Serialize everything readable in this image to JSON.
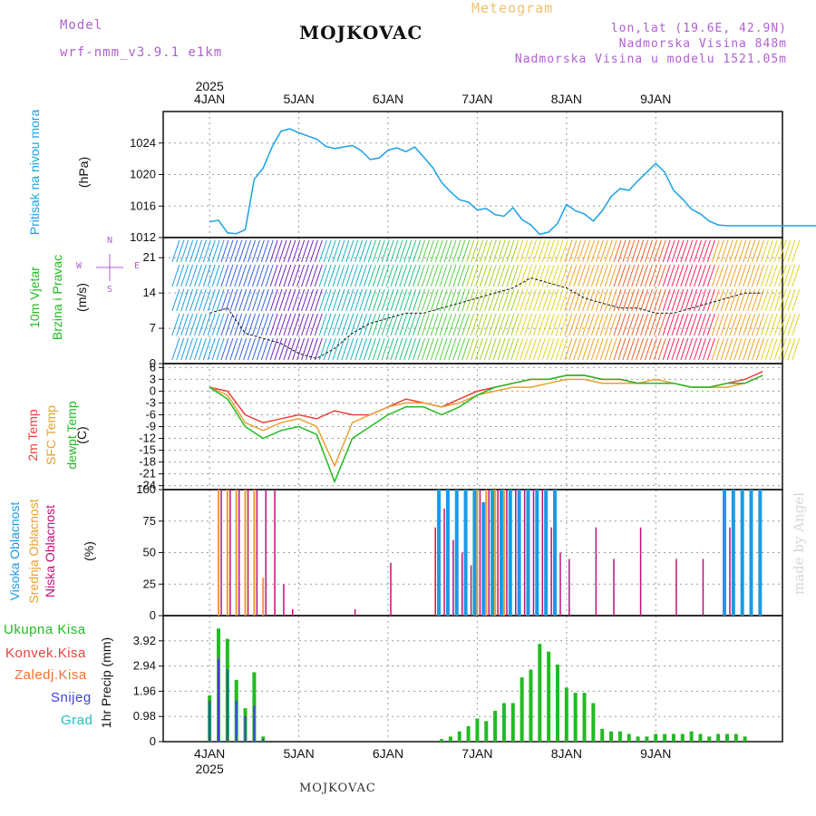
{
  "header": {
    "model_label": "Model",
    "model_name": "wrf-nmm_v3.9.1 e1km",
    "meteogram_label": "Meteogram",
    "station": "MOJKOVAC",
    "lonlat": "lon,lat (19.6E, 42.9N)",
    "elevation": "Nadmorska Visina 848m",
    "model_elevation": "Nadmorska Visina u modelu 1521.05m"
  },
  "footer": {
    "station": "MOJKOVAC"
  },
  "watermark": "made by Angel",
  "colors": {
    "pressure": "#1aa3e6",
    "temp2m": "#e84040",
    "sfc_temp": "#e8a030",
    "dewpoint": "#22bb22",
    "cloud_high": "#1a9be6",
    "cloud_mid": "#e8a030",
    "cloud_low": "#c0107a",
    "precip_total": "#22bb22",
    "precip_conv": "#e84040",
    "precip_frz": "#f07030",
    "snow": "#4040dd",
    "hail": "#20c0c0",
    "header_purple": "#b060d0",
    "header_orange": "#f0c070"
  },
  "axes": {
    "year": "2025",
    "days": [
      "4JAN",
      "5JAN",
      "6JAN",
      "7JAN",
      "8JAN",
      "9JAN"
    ]
  },
  "panels": {
    "pressure": {
      "label": "Pritisak na nivou mora",
      "unit": "(hPa)"
    },
    "wind": {
      "label1": "10m Vjetar",
      "label2": "Brzina i Pravac",
      "unit": "(m/s)",
      "compass_n": "N",
      "compass_s": "S",
      "compass_w": "W",
      "compass_e": "E"
    },
    "temp": {
      "label_2m": "2m Temp",
      "label_sfc": "SFC Temp",
      "label_dew": "dewpt Temp",
      "unit": "(C)"
    },
    "cloud": {
      "label_high": "Visoka Oblacnost",
      "label_mid": "Srednja Oblacnost",
      "label_low": "Niska Oblacnost",
      "unit": "(%)"
    },
    "precip": {
      "axis_label": "1hr Precip (mm)",
      "legend": [
        "Ukupna Kisa",
        "Konvek.Kisa",
        "Zaledj.Kisa",
        "Snijeg",
        "Grad"
      ]
    }
  },
  "chart_data": [
    {
      "type": "line",
      "name": "pressure",
      "ylim": [
        1012,
        1028
      ],
      "yticks": [
        1012,
        1016,
        1020,
        1024
      ],
      "x": [
        0,
        0.1,
        0.2,
        0.3,
        0.4,
        0.5,
        0.6,
        0.7,
        0.8,
        0.9,
        1.0,
        1.1,
        1.2,
        1.3,
        1.4,
        1.5,
        1.6,
        1.7,
        1.8,
        1.9,
        2.0,
        2.1,
        2.2,
        2.3,
        2.4,
        2.5,
        2.6,
        2.7,
        2.8,
        2.9,
        3.0,
        3.1,
        3.2,
        3.3,
        3.4,
        3.5,
        3.6,
        3.7,
        3.8,
        3.9,
        4.0,
        4.1,
        4.2,
        4.3,
        4.4,
        4.5,
        4.6,
        4.7,
        4.8,
        4.9,
        5.0,
        5.1,
        5.2,
        5.3,
        5.4,
        5.5,
        5.6,
        5.7,
        5.8,
        5.9,
        6.0,
        6.1,
        6.2,
        6.3,
        6.4,
        6.5,
        6.6,
        6.7,
        6.8,
        6.9
      ],
      "y": [
        1014.0,
        1014.2,
        1012.6,
        1012.5,
        1013.0,
        1019.4,
        1020.8,
        1023.5,
        1025.5,
        1025.8,
        1025.3,
        1024.9,
        1024.5,
        1023.6,
        1023.3,
        1023.5,
        1023.7,
        1023.0,
        1021.9,
        1022.1,
        1023.1,
        1023.4,
        1022.9,
        1023.5,
        1022.2,
        1020.9,
        1019.0,
        1017.8,
        1016.8,
        1016.5,
        1015.5,
        1015.7,
        1014.9,
        1014.7,
        1015.8,
        1014.3,
        1013.6,
        1012.4,
        1012.7,
        1013.8,
        1016.2,
        1015.4,
        1015.0,
        1014.1,
        1015.4,
        1017.2,
        1018.2,
        1018.0,
        1019.2,
        1020.3,
        1021.4,
        1020.3,
        1018.0,
        1016.9,
        1015.6,
        1015.0,
        1014.1,
        1013.6,
        1013.5,
        1013.5,
        1013.5,
        1013.5,
        1013.5,
        1013.5,
        1013.5,
        1013.5,
        1013.5,
        1013.5,
        1013.5,
        1013.5
      ]
    },
    {
      "type": "line",
      "name": "wind_speed",
      "ylim": [
        0,
        25
      ],
      "yticks": [
        0,
        7,
        14,
        21
      ],
      "x": [
        0,
        0.2,
        0.4,
        0.6,
        0.8,
        1.0,
        1.2,
        1.4,
        1.6,
        1.8,
        2.0,
        2.2,
        2.4,
        2.6,
        2.8,
        3.0,
        3.2,
        3.4,
        3.6,
        3.8,
        4.0,
        4.2,
        4.4,
        4.6,
        4.8,
        5.0,
        5.2,
        5.4,
        5.6,
        5.8,
        6.0,
        6.2
      ],
      "series": [
        {
          "name": "wind",
          "y": [
            10,
            11,
            6,
            5,
            4,
            2,
            1,
            3,
            6,
            8,
            9,
            10,
            10,
            11,
            12,
            13,
            14,
            15,
            17,
            16,
            15,
            13,
            12,
            11,
            11,
            10,
            10,
            11,
            12,
            13,
            14,
            14
          ]
        }
      ]
    },
    {
      "type": "line",
      "name": "temperature",
      "ylim": [
        -25,
        7
      ],
      "yticks": [
        -24,
        -21,
        -18,
        -15,
        -12,
        -9,
        -6,
        -3,
        0,
        3,
        6
      ],
      "x": [
        0,
        0.2,
        0.4,
        0.6,
        0.8,
        1.0,
        1.2,
        1.4,
        1.6,
        1.8,
        2.0,
        2.2,
        2.4,
        2.6,
        2.8,
        3.0,
        3.2,
        3.4,
        3.6,
        3.8,
        4.0,
        4.2,
        4.4,
        4.6,
        4.8,
        5.0,
        5.2,
        5.4,
        5.6,
        5.8,
        6.0,
        6.2
      ],
      "series": [
        {
          "name": "2m Temp",
          "y": [
            1,
            0,
            -6,
            -8,
            -7,
            -6,
            -7,
            -5,
            -6,
            -6,
            -4,
            -2,
            -3,
            -4,
            -2,
            0,
            1,
            2,
            3,
            3,
            4,
            4,
            3,
            3,
            2,
            2,
            2,
            1,
            1,
            2,
            3,
            5
          ]
        },
        {
          "name": "SFC Temp",
          "y": [
            1,
            -1,
            -8,
            -10,
            -8,
            -7,
            -9,
            -19,
            -8,
            -6,
            -4,
            -3,
            -3,
            -4,
            -3,
            -1,
            0,
            1,
            1,
            2,
            3,
            3,
            2,
            2,
            2,
            3,
            2,
            1,
            1,
            1,
            2,
            4
          ]
        },
        {
          "name": "dewpt Temp",
          "y": [
            1,
            -2,
            -9,
            -12,
            -10,
            -9,
            -11,
            -23,
            -12,
            -9,
            -6,
            -4,
            -4,
            -6,
            -4,
            -1,
            1,
            2,
            3,
            3,
            4,
            4,
            3,
            3,
            2,
            2,
            2,
            1,
            1,
            2,
            2,
            4
          ]
        }
      ]
    },
    {
      "type": "bar",
      "name": "cloud_cover",
      "ylim": [
        0,
        100
      ],
      "yticks": [
        0,
        25,
        50,
        75,
        100
      ],
      "x": [
        0.1,
        0.2,
        0.3,
        0.4,
        0.5,
        0.6,
        0.7,
        0.8,
        0.9,
        1.0,
        1.6,
        2.0,
        2.5,
        2.6,
        2.7,
        2.8,
        2.9,
        3.0,
        3.1,
        3.2,
        3.3,
        3.4,
        3.5,
        3.6,
        3.7,
        3.8,
        3.9,
        4.0,
        4.3,
        4.5,
        4.8,
        5.2,
        5.5,
        5.8,
        5.9,
        6.0,
        6.1,
        6.2
      ],
      "series": [
        {
          "name": "Visoka Oblacnost",
          "values": [
            0,
            0,
            0,
            0,
            0,
            0,
            0,
            0,
            0,
            0,
            0,
            0,
            0,
            100,
            100,
            100,
            100,
            100,
            90,
            100,
            100,
            100,
            100,
            100,
            100,
            100,
            100,
            0,
            0,
            0,
            0,
            0,
            0,
            100,
            100,
            100,
            100,
            100
          ]
        },
        {
          "name": "Srednja Oblacnost",
          "values": [
            100,
            100,
            100,
            100,
            100,
            30,
            0,
            0,
            0,
            0,
            0,
            0,
            0,
            0,
            0,
            0,
            0,
            100,
            100,
            100,
            100,
            0,
            0,
            0,
            0,
            0,
            0,
            0,
            0,
            0,
            0,
            0,
            0,
            0,
            0,
            0,
            0,
            0
          ]
        },
        {
          "name": "Niska Oblacnost",
          "values": [
            100,
            100,
            100,
            100,
            100,
            100,
            100,
            25,
            5,
            0,
            5,
            42,
            70,
            85,
            60,
            50,
            40,
            100,
            100,
            100,
            100,
            100,
            100,
            100,
            100,
            70,
            50,
            45,
            70,
            45,
            70,
            45,
            45,
            70,
            0,
            0,
            0,
            0
          ]
        }
      ]
    },
    {
      "type": "bar",
      "name": "precipitation",
      "ylim": [
        0,
        4.9
      ],
      "yticks": [
        0,
        0.98,
        1.96,
        2.94,
        3.92
      ],
      "x": [
        0.0,
        0.1,
        0.2,
        0.3,
        0.4,
        0.5,
        0.6,
        2.6,
        2.7,
        2.8,
        2.9,
        3.0,
        3.1,
        3.2,
        3.3,
        3.4,
        3.5,
        3.6,
        3.7,
        3.8,
        3.9,
        4.0,
        4.1,
        4.2,
        4.3,
        4.4,
        4.5,
        4.6,
        4.7,
        4.8,
        4.9,
        5.0,
        5.1,
        5.2,
        5.3,
        5.4,
        5.5,
        5.6,
        5.7,
        5.8,
        5.9,
        6.0
      ],
      "series": [
        {
          "name": "Ukupna Kisa",
          "values": [
            1.8,
            4.4,
            4.0,
            2.4,
            1.3,
            2.7,
            0.2,
            0.1,
            0.2,
            0.4,
            0.6,
            0.9,
            0.8,
            1.2,
            1.5,
            1.5,
            2.5,
            2.8,
            3.8,
            3.5,
            3.0,
            2.1,
            1.9,
            1.9,
            1.5,
            0.5,
            0.4,
            0.4,
            0.3,
            0.2,
            0.2,
            0.3,
            0.3,
            0.3,
            0.3,
            0.4,
            0.3,
            0.2,
            0.3,
            0.3,
            0.3,
            0.2
          ]
        },
        {
          "name": "Snijeg",
          "values": [
            1.6,
            3.2,
            2.8,
            1.6,
            1.0,
            1.4,
            0.1,
            0,
            0,
            0,
            0,
            0,
            0,
            0,
            0,
            0,
            0,
            0,
            0,
            0,
            0,
            0,
            0,
            0,
            0,
            0,
            0,
            0,
            0,
            0,
            0,
            0,
            0,
            0,
            0,
            0,
            0,
            0,
            0,
            0,
            0,
            0
          ]
        }
      ]
    }
  ]
}
